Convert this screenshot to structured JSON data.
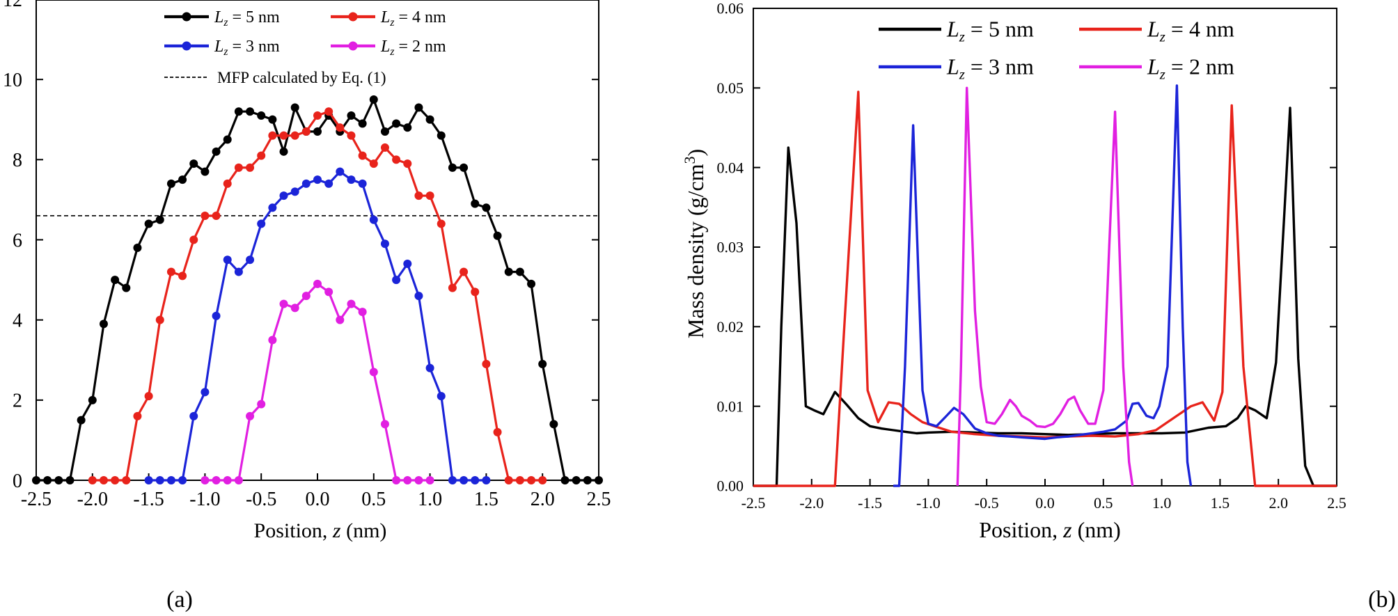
{
  "chart_data": [
    {
      "panel_label": "(a)",
      "type": "line",
      "xlabel": "Position, z (nm)",
      "ylabel": "",
      "xlim": [
        -2.5,
        2.5
      ],
      "ylim": [
        0,
        12
      ],
      "xticks": [
        "-2.5",
        "-2.0",
        "-1.5",
        "-1.0",
        "-0.5",
        "0.0",
        "0.5",
        "1.0",
        "1.5",
        "2.0",
        "2.5"
      ],
      "yticks": [
        "0",
        "2",
        "4",
        "6",
        "8",
        "10",
        "12"
      ],
      "markers": true,
      "legend": "top",
      "reference_line": {
        "label": "MFP calculated by Eq. (1)",
        "y": 6.6,
        "style": "dashed"
      },
      "series": [
        {
          "name": "Lz = 5 nm",
          "color": "#000000",
          "x": [
            -2.5,
            -2.4,
            -2.3,
            -2.2,
            -2.1,
            -2.0,
            -1.9,
            -1.8,
            -1.7,
            -1.6,
            -1.5,
            -1.4,
            -1.3,
            -1.2,
            -1.1,
            -1.0,
            -0.9,
            -0.8,
            -0.7,
            -0.6,
            -0.5,
            -0.4,
            -0.3,
            -0.2,
            -0.1,
            0.0,
            0.1,
            0.2,
            0.3,
            0.4,
            0.5,
            0.6,
            0.7,
            0.8,
            0.9,
            1.0,
            1.1,
            1.2,
            1.3,
            1.4,
            1.5,
            1.6,
            1.7,
            1.8,
            1.9,
            2.0,
            2.1,
            2.2,
            2.3,
            2.4,
            2.5
          ],
          "y": [
            0,
            0,
            0,
            0,
            1.5,
            2.0,
            3.9,
            5.0,
            4.8,
            5.8,
            6.4,
            6.5,
            7.4,
            7.5,
            7.9,
            7.7,
            8.2,
            8.5,
            9.2,
            9.2,
            9.1,
            9.0,
            8.2,
            9.3,
            8.7,
            8.7,
            9.1,
            8.7,
            9.1,
            8.9,
            9.5,
            8.7,
            8.9,
            8.8,
            9.3,
            9.0,
            8.6,
            7.8,
            7.8,
            6.9,
            6.8,
            6.1,
            5.2,
            5.2,
            4.9,
            2.9,
            1.4,
            0,
            0,
            0,
            0
          ]
        },
        {
          "name": "Lz = 4 nm",
          "color": "#e8231b",
          "x": [
            -2.0,
            -1.9,
            -1.8,
            -1.7,
            -1.6,
            -1.5,
            -1.4,
            -1.3,
            -1.2,
            -1.1,
            -1.0,
            -0.9,
            -0.8,
            -0.7,
            -0.6,
            -0.5,
            -0.4,
            -0.3,
            -0.2,
            -0.1,
            0.0,
            0.1,
            0.2,
            0.3,
            0.4,
            0.5,
            0.6,
            0.7,
            0.8,
            0.9,
            1.0,
            1.1,
            1.2,
            1.3,
            1.4,
            1.5,
            1.6,
            1.7,
            1.8,
            1.9,
            2.0
          ],
          "y": [
            0,
            0,
            0,
            0,
            1.6,
            2.1,
            4.0,
            5.2,
            5.1,
            6.0,
            6.6,
            6.6,
            7.4,
            7.8,
            7.8,
            8.1,
            8.6,
            8.6,
            8.6,
            8.7,
            9.1,
            9.2,
            8.8,
            8.6,
            8.1,
            7.9,
            8.3,
            8.0,
            7.9,
            7.1,
            7.1,
            6.4,
            4.8,
            5.2,
            4.7,
            2.9,
            1.2,
            0,
            0,
            0,
            0
          ]
        },
        {
          "name": "Lz = 3 nm",
          "color": "#1b24d8",
          "x": [
            -1.5,
            -1.4,
            -1.3,
            -1.2,
            -1.1,
            -1.0,
            -0.9,
            -0.8,
            -0.7,
            -0.6,
            -0.5,
            -0.4,
            -0.3,
            -0.2,
            -0.1,
            0.0,
            0.1,
            0.2,
            0.3,
            0.4,
            0.5,
            0.6,
            0.7,
            0.8,
            0.9,
            1.0,
            1.1,
            1.2,
            1.3,
            1.4,
            1.5
          ],
          "y": [
            0,
            0,
            0,
            0,
            1.6,
            2.2,
            4.1,
            5.5,
            5.2,
            5.5,
            6.4,
            6.8,
            7.1,
            7.2,
            7.4,
            7.5,
            7.4,
            7.7,
            7.5,
            7.4,
            6.5,
            5.9,
            5.0,
            5.4,
            4.6,
            2.8,
            2.1,
            0,
            0,
            0,
            0
          ]
        },
        {
          "name": "Lz = 2 nm",
          "color": "#e11fe1",
          "x": [
            -1.0,
            -0.9,
            -0.8,
            -0.7,
            -0.6,
            -0.5,
            -0.4,
            -0.3,
            -0.2,
            -0.1,
            0.0,
            0.1,
            0.2,
            0.3,
            0.4,
            0.5,
            0.6,
            0.7,
            0.8,
            0.9,
            1.0
          ],
          "y": [
            0,
            0,
            0,
            0,
            1.6,
            1.9,
            3.5,
            4.4,
            4.3,
            4.6,
            4.9,
            4.7,
            4.0,
            4.4,
            4.2,
            2.7,
            1.4,
            0,
            0,
            0,
            0
          ]
        }
      ]
    },
    {
      "panel_label": "(b)",
      "type": "line",
      "xlabel": "Position, z (nm)",
      "ylabel": "Mass density (g/cm3)",
      "xlim": [
        -2.5,
        2.5
      ],
      "ylim": [
        0,
        0.06
      ],
      "xticks": [
        "-2.5",
        "-2.0",
        "-1.5",
        "-1.0",
        "-0.5",
        "0.0",
        "0.5",
        "1.0",
        "1.5",
        "2.0",
        "2.5"
      ],
      "yticks": [
        "0.00",
        "0.01",
        "0.02",
        "0.03",
        "0.04",
        "0.05",
        "0.06"
      ],
      "markers": false,
      "legend": "top",
      "series": [
        {
          "name": "Lz = 5 nm",
          "color": "#000000",
          "x": [
            -2.5,
            -2.3,
            -2.26,
            -2.2,
            -2.13,
            -2.05,
            -1.98,
            -1.9,
            -1.8,
            -1.7,
            -1.6,
            -1.5,
            -1.4,
            -1.3,
            -1.2,
            -1.1,
            -1.0,
            -0.8,
            -0.6,
            -0.4,
            -0.2,
            0.0,
            0.2,
            0.4,
            0.6,
            0.8,
            1.0,
            1.2,
            1.4,
            1.55,
            1.65,
            1.72,
            1.8,
            1.9,
            1.98,
            2.05,
            2.1,
            2.17,
            2.23,
            2.3,
            2.5
          ],
          "y": [
            0,
            0,
            0.02,
            0.0425,
            0.033,
            0.01,
            0.0095,
            0.009,
            0.0118,
            0.0102,
            0.0085,
            0.0075,
            0.0072,
            0.007,
            0.0068,
            0.0066,
            0.0067,
            0.0068,
            0.0067,
            0.0066,
            0.0066,
            0.0065,
            0.0064,
            0.0065,
            0.0066,
            0.0066,
            0.0066,
            0.0067,
            0.0073,
            0.0075,
            0.0085,
            0.01,
            0.0095,
            0.0085,
            0.0155,
            0.034,
            0.0475,
            0.016,
            0.0025,
            0,
            0
          ]
        },
        {
          "name": "Lz = 4 nm",
          "color": "#e8231b",
          "x": [
            -2.5,
            -1.8,
            -1.72,
            -1.6,
            -1.52,
            -1.43,
            -1.34,
            -1.25,
            -1.15,
            -1.05,
            -0.95,
            -0.8,
            -0.6,
            -0.4,
            -0.2,
            0.0,
            0.2,
            0.4,
            0.6,
            0.8,
            0.95,
            1.05,
            1.15,
            1.25,
            1.35,
            1.45,
            1.52,
            1.6,
            1.7,
            1.8,
            2.5
          ],
          "y": [
            0,
            0,
            0.02,
            0.0495,
            0.012,
            0.008,
            0.0105,
            0.0103,
            0.009,
            0.008,
            0.0075,
            0.0068,
            0.0065,
            0.0063,
            0.0062,
            0.0061,
            0.0062,
            0.0063,
            0.0062,
            0.0065,
            0.007,
            0.008,
            0.009,
            0.01,
            0.0105,
            0.0082,
            0.0118,
            0.0478,
            0.015,
            0,
            0
          ]
        },
        {
          "name": "Lz = 3 nm",
          "color": "#1b24d8",
          "x": [
            -1.3,
            -1.25,
            -1.2,
            -1.13,
            -1.05,
            -1.0,
            -0.93,
            -0.85,
            -0.78,
            -0.7,
            -0.6,
            -0.5,
            -0.4,
            -0.3,
            -0.2,
            -0.1,
            0.0,
            0.1,
            0.2,
            0.3,
            0.4,
            0.5,
            0.6,
            0.7,
            0.75,
            0.8,
            0.87,
            0.93,
            0.98,
            1.05,
            1.1,
            1.13,
            1.18,
            1.22,
            1.25
          ],
          "y": [
            0,
            0,
            0.015,
            0.0453,
            0.012,
            0.0078,
            0.0075,
            0.0087,
            0.0098,
            0.009,
            0.0072,
            0.0066,
            0.0063,
            0.0062,
            0.0061,
            0.006,
            0.0059,
            0.0061,
            0.0062,
            0.0064,
            0.0066,
            0.0068,
            0.0071,
            0.0082,
            0.0103,
            0.0104,
            0.0088,
            0.0085,
            0.01,
            0.015,
            0.037,
            0.0503,
            0.02,
            0.003,
            0
          ]
        },
        {
          "name": "Lz = 2 nm",
          "color": "#e11fe1",
          "x": [
            -0.75,
            -0.72,
            -0.67,
            -0.6,
            -0.55,
            -0.5,
            -0.43,
            -0.37,
            -0.3,
            -0.25,
            -0.2,
            -0.13,
            -0.07,
            0.0,
            0.07,
            0.13,
            0.2,
            0.25,
            0.3,
            0.37,
            0.43,
            0.5,
            0.55,
            0.6,
            0.67,
            0.72,
            0.75
          ],
          "y": [
            0,
            0.015,
            0.05,
            0.022,
            0.0125,
            0.008,
            0.0078,
            0.009,
            0.0108,
            0.01,
            0.0088,
            0.0082,
            0.0075,
            0.0074,
            0.0078,
            0.009,
            0.0108,
            0.0112,
            0.0095,
            0.0078,
            0.0078,
            0.012,
            0.03,
            0.047,
            0.015,
            0.003,
            0
          ]
        }
      ]
    }
  ]
}
